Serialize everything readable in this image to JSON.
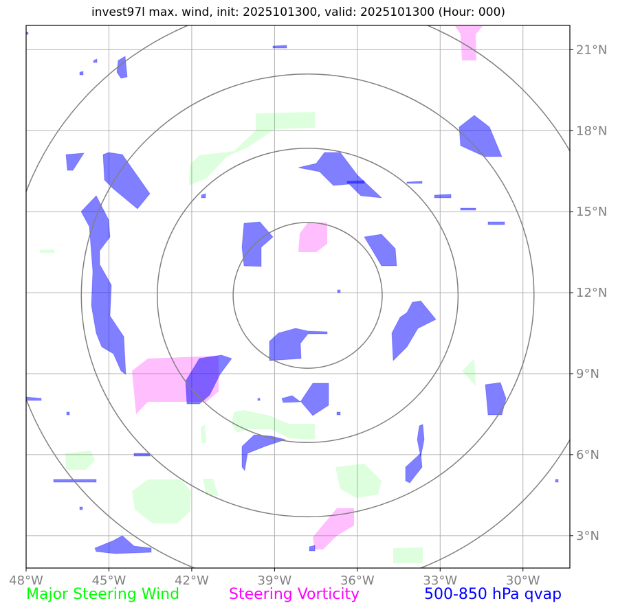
{
  "title": "invest97l max. wind, init: 2025101300, valid: 2025101300 (Hour: 000)",
  "map": {
    "lon_range": [
      -48,
      -28.3
    ],
    "lat_range": [
      1.8,
      21.9
    ],
    "lon_ticks": [
      -48,
      -45,
      -42,
      -39,
      -36,
      -33,
      -30
    ],
    "lon_tick_labels": [
      "48°W",
      "45°W",
      "42°W",
      "39°W",
      "36°W",
      "33°W",
      "30°W"
    ],
    "lat_ticks": [
      3,
      6,
      9,
      12,
      15,
      18,
      21
    ],
    "lat_tick_labels": [
      "3°N",
      "6°N",
      "9°N",
      "12°N",
      "15°N",
      "18°N",
      "21°N"
    ],
    "grid": true,
    "range_rings": {
      "center": [
        -37.8,
        11.9
      ],
      "radii_deg": [
        2.7,
        5.45,
        8.2,
        10.9
      ]
    },
    "colors": {
      "steering_wind": "#00ff00",
      "vorticity": "#ff00ff",
      "qvap": "#0000ff",
      "ring": "#808080",
      "grid": "#b0b0b0"
    }
  },
  "legend": {
    "steering_wind": "Major Steering Wind",
    "vorticity": "Steering Vorticity",
    "qvap": "500-850 hPa qvap"
  }
}
